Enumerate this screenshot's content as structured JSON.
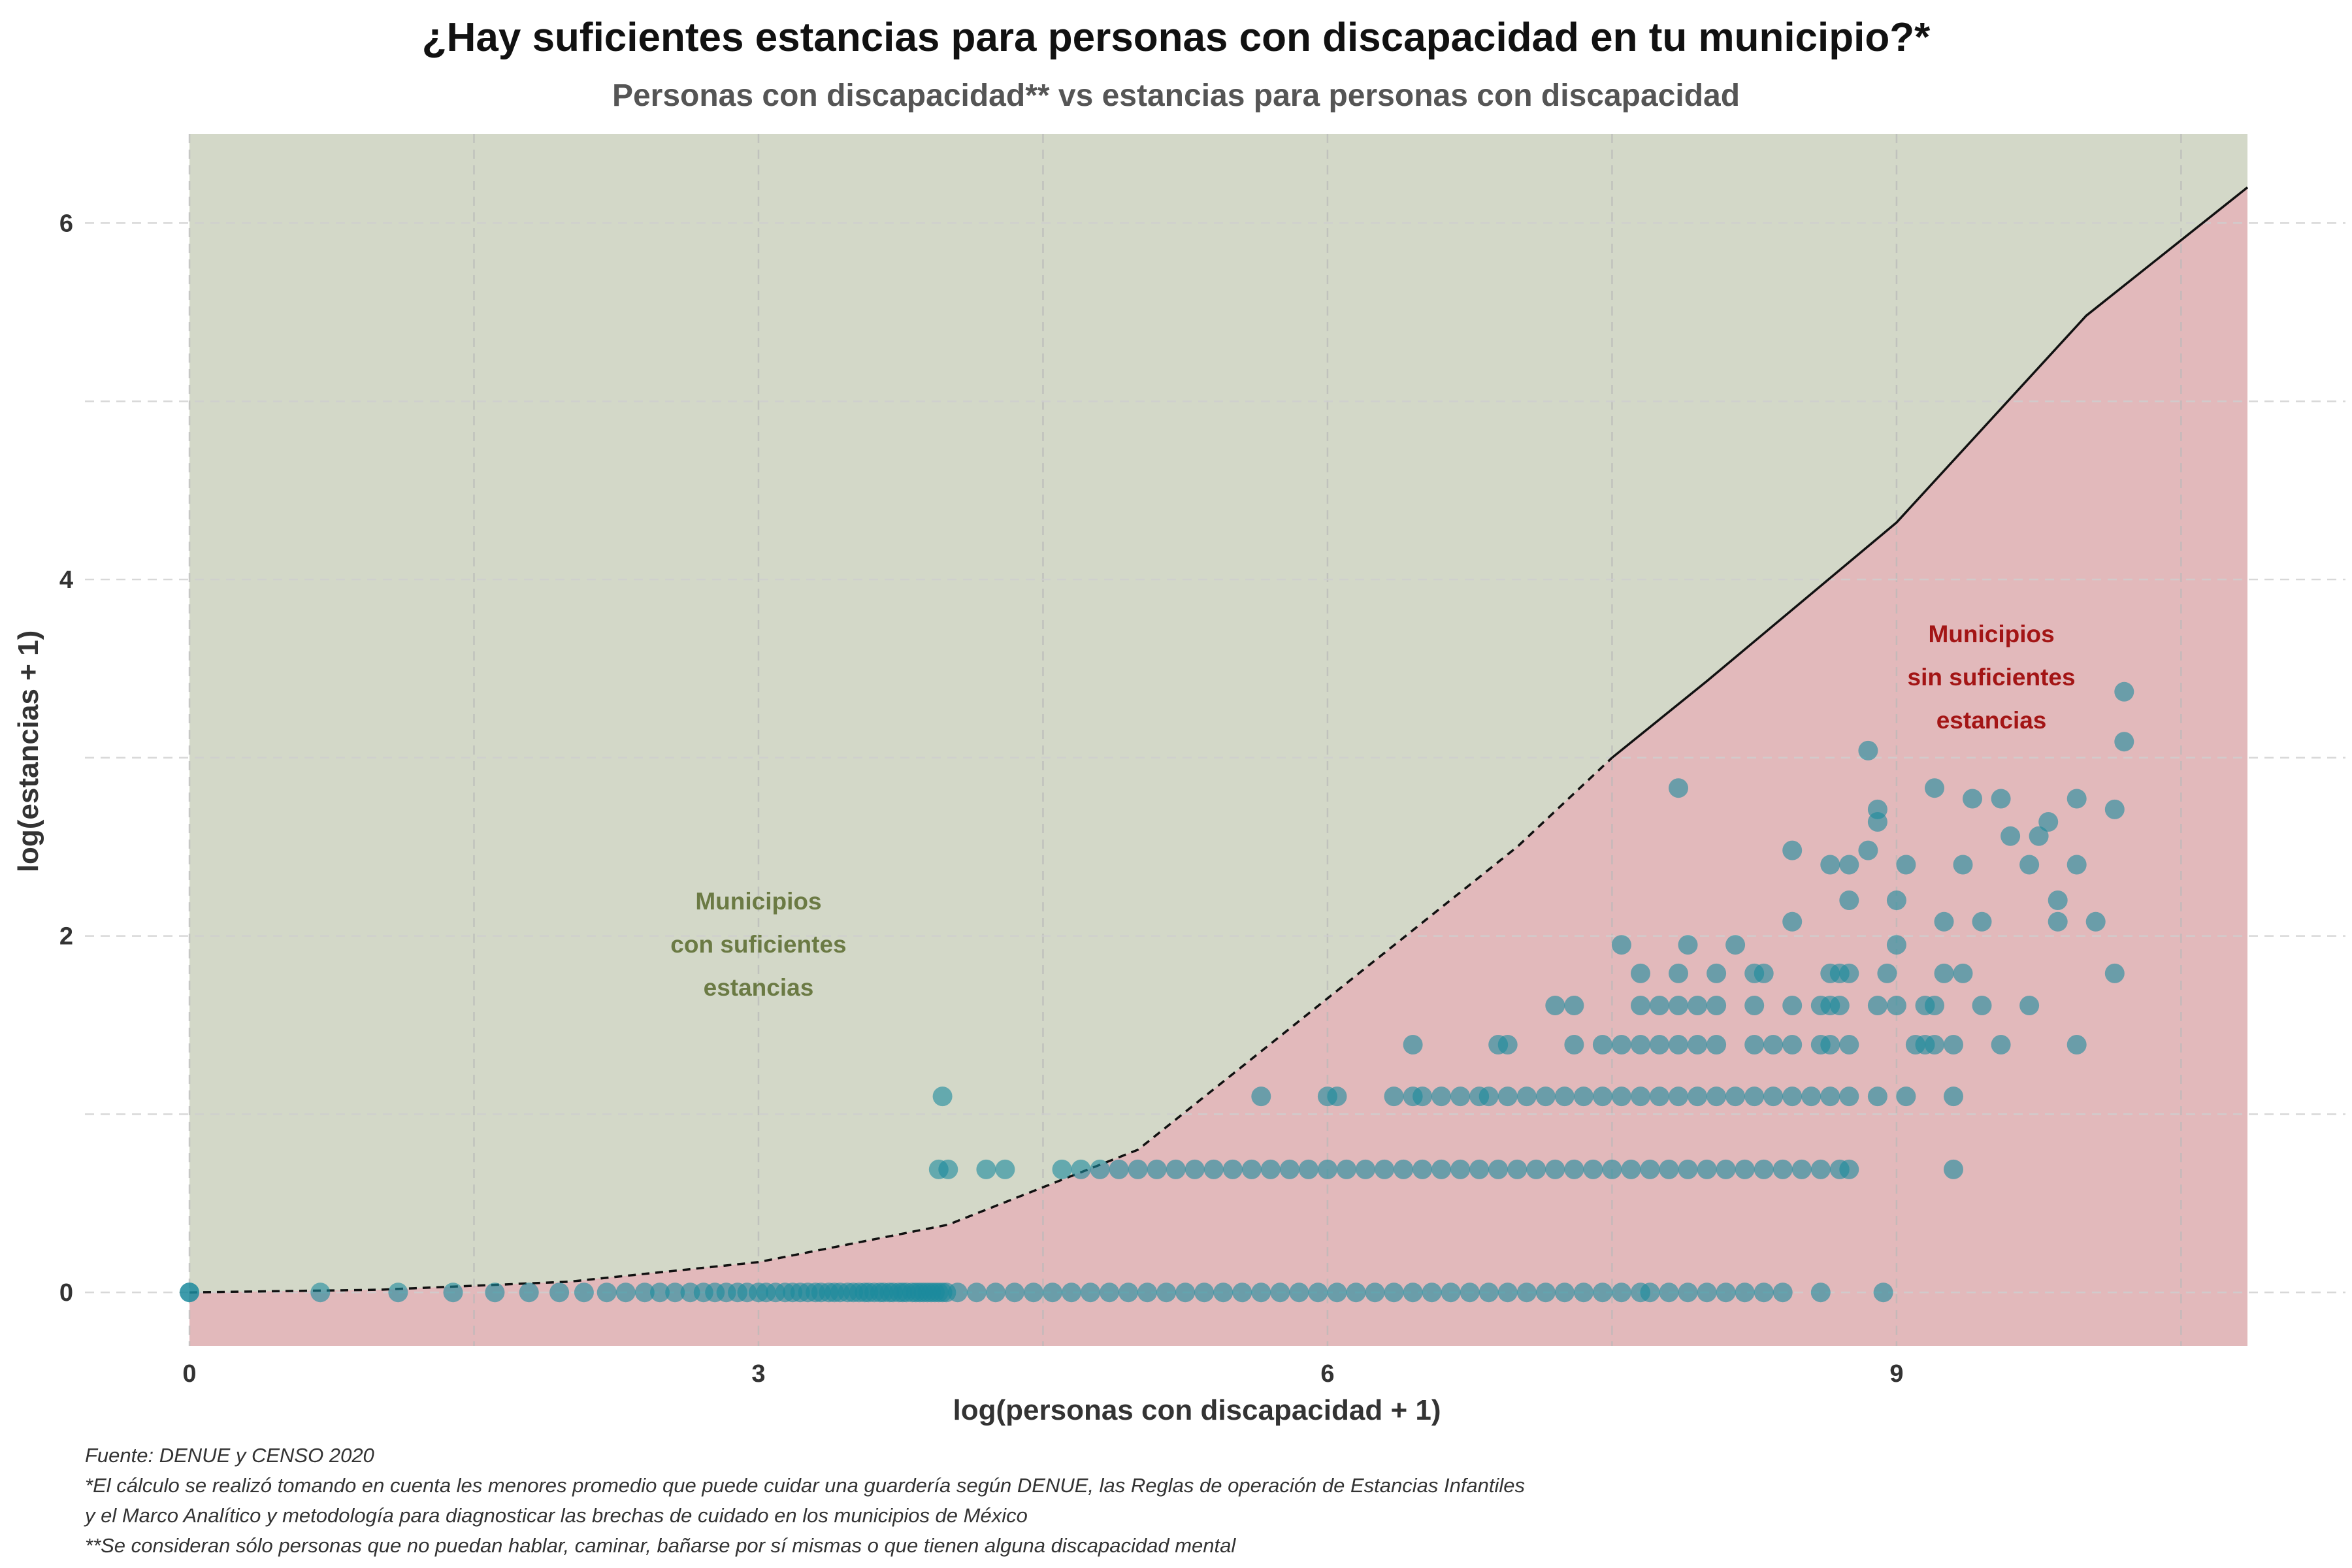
{
  "chart_data": {
    "type": "scatter",
    "title": "¿Hay suficientes estancias para personas con discapacidad en tu municipio?*",
    "subtitle": "Personas con discapacidad** vs estancias para personas con discapacidad",
    "xlabel": "log(personas con discapacidad + 1)",
    "ylabel": "log(estancias + 1)",
    "xlim": [
      0,
      10.85
    ],
    "ylim": [
      -0.3,
      6.5
    ],
    "x_ticks": [
      "0",
      "3",
      "6",
      "9"
    ],
    "y_ticks": [
      "0",
      "2",
      "4",
      "6"
    ],
    "grid": true,
    "threshold_line": {
      "points": [
        [
          0,
          0
        ],
        [
          1,
          0.015
        ],
        [
          2,
          0.06
        ],
        [
          3,
          0.17
        ],
        [
          4,
          0.38
        ],
        [
          5,
          0.8
        ],
        [
          6,
          1.65
        ],
        [
          7,
          2.5
        ],
        [
          7.5,
          3.0
        ],
        [
          8,
          3.43
        ],
        [
          9,
          4.32
        ],
        [
          10,
          5.48
        ],
        [
          10.85,
          6.2
        ]
      ],
      "dashed_until_x": 7.5
    },
    "regions": [
      {
        "label": "Municipios con suficientes estancias",
        "lines": [
          "Municipios",
          "con suficientes",
          "estancias"
        ],
        "color": "#d3d8c8",
        "text_color": "#6b7a44"
      },
      {
        "label": "Municipios sin suficientes estancias",
        "lines": [
          "Municipios",
          "sin suficientes",
          "estancias"
        ],
        "color": "#e2b9bb",
        "text_color": "#a31515"
      }
    ],
    "point_color": "#1b8a9c",
    "series": [
      {
        "points": [
          [
            0.69,
            0
          ],
          [
            1.1,
            0
          ],
          [
            1.39,
            0
          ],
          [
            1.61,
            0
          ],
          [
            1.79,
            0
          ],
          [
            1.95,
            0
          ],
          [
            2.08,
            0
          ],
          [
            2.2,
            0
          ],
          [
            2.3,
            0
          ],
          [
            2.4,
            0
          ],
          [
            2.48,
            0
          ],
          [
            2.56,
            0
          ],
          [
            2.64,
            0
          ],
          [
            2.71,
            0
          ],
          [
            2.77,
            0
          ],
          [
            2.83,
            0
          ],
          [
            2.89,
            0
          ],
          [
            2.94,
            0
          ],
          [
            3.0,
            0
          ],
          [
            3.04,
            0
          ],
          [
            3.09,
            0
          ],
          [
            3.14,
            0
          ],
          [
            3.18,
            0
          ],
          [
            3.22,
            0
          ],
          [
            3.26,
            0
          ],
          [
            3.3,
            0
          ],
          [
            3.33,
            0
          ],
          [
            3.37,
            0
          ],
          [
            3.4,
            0
          ],
          [
            3.43,
            0
          ],
          [
            3.47,
            0
          ],
          [
            3.5,
            0
          ],
          [
            3.53,
            0
          ],
          [
            3.56,
            0
          ],
          [
            3.58,
            0
          ],
          [
            3.61,
            0
          ],
          [
            3.64,
            0
          ],
          [
            3.66,
            0
          ],
          [
            3.69,
            0
          ],
          [
            3.71,
            0
          ],
          [
            3.74,
            0
          ],
          [
            3.76,
            0
          ],
          [
            3.78,
            0
          ],
          [
            3.81,
            0
          ],
          [
            3.83,
            0
          ],
          [
            3.85,
            0
          ],
          [
            3.87,
            0
          ],
          [
            3.89,
            0
          ],
          [
            3.91,
            0
          ],
          [
            3.93,
            0
          ],
          [
            3.95,
            0
          ],
          [
            3.97,
            0
          ],
          [
            3.99,
            0
          ],
          [
            4.05,
            0
          ],
          [
            4.15,
            0
          ],
          [
            4.25,
            0
          ],
          [
            4.35,
            0
          ],
          [
            4.45,
            0
          ],
          [
            4.55,
            0
          ],
          [
            4.65,
            0
          ],
          [
            4.75,
            0
          ],
          [
            4.85,
            0
          ],
          [
            4.95,
            0
          ],
          [
            5.05,
            0
          ],
          [
            5.15,
            0
          ],
          [
            5.25,
            0
          ],
          [
            5.35,
            0
          ],
          [
            5.45,
            0
          ],
          [
            5.55,
            0
          ],
          [
            5.65,
            0
          ],
          [
            5.75,
            0
          ],
          [
            5.85,
            0
          ],
          [
            5.95,
            0
          ],
          [
            6.05,
            0
          ],
          [
            6.15,
            0
          ],
          [
            6.25,
            0
          ],
          [
            6.35,
            0
          ],
          [
            6.45,
            0
          ],
          [
            6.55,
            0
          ],
          [
            6.65,
            0
          ],
          [
            6.75,
            0
          ],
          [
            6.85,
            0
          ],
          [
            6.95,
            0
          ],
          [
            7.05,
            0
          ],
          [
            7.15,
            0
          ],
          [
            7.25,
            0
          ],
          [
            7.35,
            0
          ],
          [
            7.45,
            0
          ],
          [
            7.55,
            0
          ],
          [
            7.65,
            0
          ],
          [
            7.7,
            0
          ],
          [
            7.8,
            0
          ],
          [
            7.9,
            0
          ],
          [
            8.0,
            0
          ],
          [
            8.1,
            0
          ],
          [
            8.2,
            0
          ],
          [
            8.3,
            0
          ],
          [
            8.4,
            0
          ],
          [
            8.6,
            0
          ],
          [
            8.93,
            0
          ],
          [
            3.95,
            0.69
          ],
          [
            4.0,
            0.69
          ],
          [
            4.2,
            0.69
          ],
          [
            4.3,
            0.69
          ],
          [
            4.6,
            0.69
          ],
          [
            4.7,
            0.69
          ],
          [
            4.8,
            0.69
          ],
          [
            4.9,
            0.69
          ],
          [
            5.0,
            0.69
          ],
          [
            5.1,
            0.69
          ],
          [
            5.2,
            0.69
          ],
          [
            5.3,
            0.69
          ],
          [
            5.4,
            0.69
          ],
          [
            5.5,
            0.69
          ],
          [
            5.6,
            0.69
          ],
          [
            5.7,
            0.69
          ],
          [
            5.8,
            0.69
          ],
          [
            5.9,
            0.69
          ],
          [
            6.0,
            0.69
          ],
          [
            6.1,
            0.69
          ],
          [
            6.2,
            0.69
          ],
          [
            6.3,
            0.69
          ],
          [
            6.4,
            0.69
          ],
          [
            6.5,
            0.69
          ],
          [
            6.6,
            0.69
          ],
          [
            6.7,
            0.69
          ],
          [
            6.8,
            0.69
          ],
          [
            6.9,
            0.69
          ],
          [
            7.0,
            0.69
          ],
          [
            7.1,
            0.69
          ],
          [
            7.2,
            0.69
          ],
          [
            7.3,
            0.69
          ],
          [
            7.4,
            0.69
          ],
          [
            7.5,
            0.69
          ],
          [
            7.6,
            0.69
          ],
          [
            7.7,
            0.69
          ],
          [
            7.8,
            0.69
          ],
          [
            7.9,
            0.69
          ],
          [
            8.0,
            0.69
          ],
          [
            8.1,
            0.69
          ],
          [
            8.2,
            0.69
          ],
          [
            8.3,
            0.69
          ],
          [
            8.4,
            0.69
          ],
          [
            8.5,
            0.69
          ],
          [
            8.6,
            0.69
          ],
          [
            8.7,
            0.69
          ],
          [
            8.75,
            0.69
          ],
          [
            9.3,
            0.69
          ],
          [
            3.97,
            1.1
          ],
          [
            5.65,
            1.1
          ],
          [
            6.0,
            1.1
          ],
          [
            6.05,
            1.1
          ],
          [
            6.35,
            1.1
          ],
          [
            6.45,
            1.1
          ],
          [
            6.5,
            1.1
          ],
          [
            6.6,
            1.1
          ],
          [
            6.7,
            1.1
          ],
          [
            6.8,
            1.1
          ],
          [
            6.85,
            1.1
          ],
          [
            6.95,
            1.1
          ],
          [
            7.05,
            1.1
          ],
          [
            7.15,
            1.1
          ],
          [
            7.25,
            1.1
          ],
          [
            7.35,
            1.1
          ],
          [
            7.45,
            1.1
          ],
          [
            7.55,
            1.1
          ],
          [
            7.65,
            1.1
          ],
          [
            7.75,
            1.1
          ],
          [
            7.85,
            1.1
          ],
          [
            7.95,
            1.1
          ],
          [
            8.05,
            1.1
          ],
          [
            8.15,
            1.1
          ],
          [
            8.25,
            1.1
          ],
          [
            8.35,
            1.1
          ],
          [
            8.45,
            1.1
          ],
          [
            8.55,
            1.1
          ],
          [
            8.65,
            1.1
          ],
          [
            8.75,
            1.1
          ],
          [
            8.9,
            1.1
          ],
          [
            9.05,
            1.1
          ],
          [
            9.3,
            1.1
          ],
          [
            6.45,
            1.39
          ],
          [
            6.9,
            1.39
          ],
          [
            6.95,
            1.39
          ],
          [
            7.3,
            1.39
          ],
          [
            7.45,
            1.39
          ],
          [
            7.55,
            1.39
          ],
          [
            7.65,
            1.39
          ],
          [
            7.75,
            1.39
          ],
          [
            7.85,
            1.39
          ],
          [
            7.95,
            1.39
          ],
          [
            8.05,
            1.39
          ],
          [
            8.25,
            1.39
          ],
          [
            8.35,
            1.39
          ],
          [
            8.45,
            1.39
          ],
          [
            8.6,
            1.39
          ],
          [
            8.65,
            1.39
          ],
          [
            8.75,
            1.39
          ],
          [
            9.1,
            1.39
          ],
          [
            9.15,
            1.39
          ],
          [
            9.2,
            1.39
          ],
          [
            9.3,
            1.39
          ],
          [
            9.55,
            1.39
          ],
          [
            9.95,
            1.39
          ],
          [
            7.2,
            1.61
          ],
          [
            7.3,
            1.61
          ],
          [
            7.65,
            1.61
          ],
          [
            7.75,
            1.61
          ],
          [
            7.85,
            1.61
          ],
          [
            7.95,
            1.61
          ],
          [
            8.05,
            1.61
          ],
          [
            8.25,
            1.61
          ],
          [
            8.45,
            1.61
          ],
          [
            8.6,
            1.61
          ],
          [
            8.65,
            1.61
          ],
          [
            8.7,
            1.61
          ],
          [
            8.9,
            1.61
          ],
          [
            9.0,
            1.61
          ],
          [
            9.15,
            1.61
          ],
          [
            9.2,
            1.61
          ],
          [
            9.45,
            1.61
          ],
          [
            9.7,
            1.61
          ],
          [
            7.65,
            1.79
          ],
          [
            7.85,
            1.79
          ],
          [
            8.05,
            1.79
          ],
          [
            8.25,
            1.79
          ],
          [
            8.3,
            1.79
          ],
          [
            8.65,
            1.79
          ],
          [
            8.7,
            1.79
          ],
          [
            8.75,
            1.79
          ],
          [
            8.95,
            1.79
          ],
          [
            9.25,
            1.79
          ],
          [
            9.35,
            1.79
          ],
          [
            10.15,
            1.79
          ],
          [
            7.55,
            1.95
          ],
          [
            7.9,
            1.95
          ],
          [
            8.15,
            1.95
          ],
          [
            9.0,
            1.95
          ],
          [
            8.45,
            2.08
          ],
          [
            9.25,
            2.08
          ],
          [
            9.45,
            2.08
          ],
          [
            9.85,
            2.08
          ],
          [
            10.05,
            2.08
          ],
          [
            8.75,
            2.2
          ],
          [
            9.0,
            2.2
          ],
          [
            9.85,
            2.2
          ],
          [
            8.65,
            2.4
          ],
          [
            8.75,
            2.4
          ],
          [
            9.05,
            2.4
          ],
          [
            9.35,
            2.4
          ],
          [
            9.7,
            2.4
          ],
          [
            9.95,
            2.4
          ],
          [
            8.45,
            2.48
          ],
          [
            8.85,
            2.48
          ],
          [
            9.6,
            2.56
          ],
          [
            9.75,
            2.56
          ],
          [
            8.9,
            2.64
          ],
          [
            9.8,
            2.64
          ],
          [
            8.9,
            2.71
          ],
          [
            10.15,
            2.71
          ],
          [
            9.4,
            2.77
          ],
          [
            9.55,
            2.77
          ],
          [
            9.95,
            2.77
          ],
          [
            7.85,
            2.83
          ],
          [
            9.2,
            2.83
          ],
          [
            8.85,
            3.04
          ],
          [
            10.2,
            3.09
          ],
          [
            10.2,
            3.37
          ]
        ]
      }
    ]
  },
  "footnotes": [
    "Fuente: DENUE y CENSO 2020",
    " *El cálculo se realizó tomando en cuenta les menores promedio que puede cuidar una guardería según DENUE, las Reglas de operación de Estancias Infantiles",
    " y el Marco Analítico y metodología para diagnosticar las brechas de cuidado en los municipios de México",
    " **Se consideran sólo personas que no puedan hablar, caminar, bañarse por sí mismas o que tienen alguna discapacidad mental"
  ]
}
